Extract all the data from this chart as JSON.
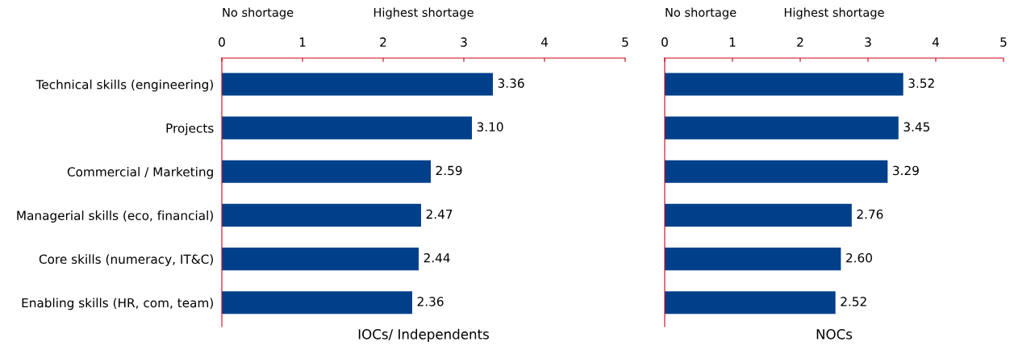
{
  "chart_data": [
    {
      "type": "bar",
      "orientation": "horizontal",
      "xlabel": "IOCs/ Independents",
      "annotations": [
        "No shortage",
        "Highest shortage"
      ],
      "categories": [
        "Technical skills (engineering)",
        "Projects",
        "Commercial / Marketing",
        "Managerial skills (eco, financial)",
        "Core skills (numeracy, IT&C)",
        "Enabling skills (HR, com, team)"
      ],
      "values": [
        3.36,
        3.1,
        2.59,
        2.47,
        2.44,
        2.36
      ],
      "value_labels": [
        "3.36",
        "3.10",
        "2.59",
        "2.47",
        "2.44",
        "2.36"
      ],
      "color": "#00408a",
      "xlim": [
        0,
        5
      ],
      "xticks": [
        0,
        1,
        2,
        3,
        4,
        5
      ],
      "grid": false,
      "legend": false
    },
    {
      "type": "bar",
      "orientation": "horizontal",
      "xlabel": "NOCs",
      "annotations": [
        "No shortage",
        "Highest shortage"
      ],
      "categories": [
        null,
        null,
        null,
        null,
        null,
        null
      ],
      "values": [
        3.52,
        3.45,
        3.29,
        2.76,
        2.6,
        2.52
      ],
      "value_labels": [
        "3.52",
        "3.45",
        "3.29",
        "2.76",
        "2.60",
        "2.52"
      ],
      "color": "#00408a",
      "xlim": [
        0,
        5
      ],
      "xticks": [
        0,
        1,
        2,
        3,
        4,
        5
      ],
      "grid": false,
      "legend": false
    }
  ]
}
